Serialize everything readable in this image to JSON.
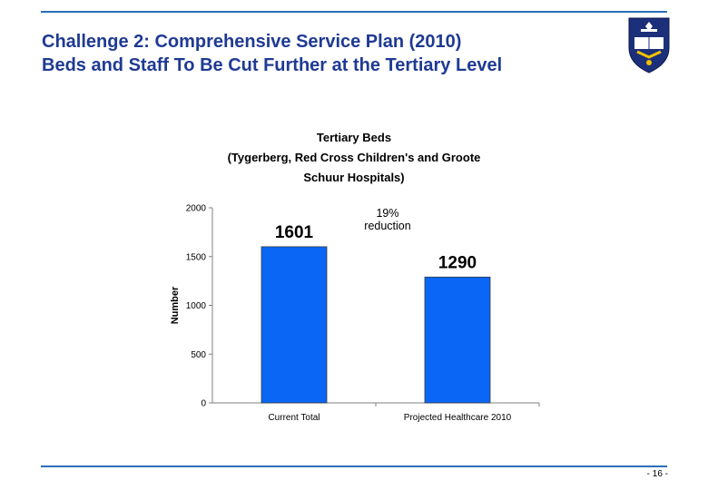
{
  "slide": {
    "title_line1": "Challenge 2: Comprehensive Service Plan (2010)",
    "title_line2": "Beds and Staff To Be Cut Further at the Tertiary Level",
    "page_number": "- 16 -",
    "accent_color": "#1f3a93",
    "rule_color": "#2b6fb8"
  },
  "logo": {
    "icon": "university-crest-icon"
  },
  "chart_data": {
    "type": "bar",
    "title_line1": "Tertiary Beds",
    "title_line2": "(Tygerberg, Red Cross Children's and Groote",
    "title_line3": "Schuur Hospitals)",
    "categories": [
      "Current Total",
      "Projected Healthcare 2010"
    ],
    "values": [
      1601,
      1290
    ],
    "data_labels": [
      "1601",
      "1290"
    ],
    "ylabel": "Number",
    "xlabel": "",
    "ylim": [
      0,
      2000
    ],
    "yticks": [
      0,
      500,
      1000,
      1500,
      2000
    ],
    "bar_color": "#0a66f5",
    "grid": false,
    "legend": "none",
    "annotation": "19% reduction"
  }
}
